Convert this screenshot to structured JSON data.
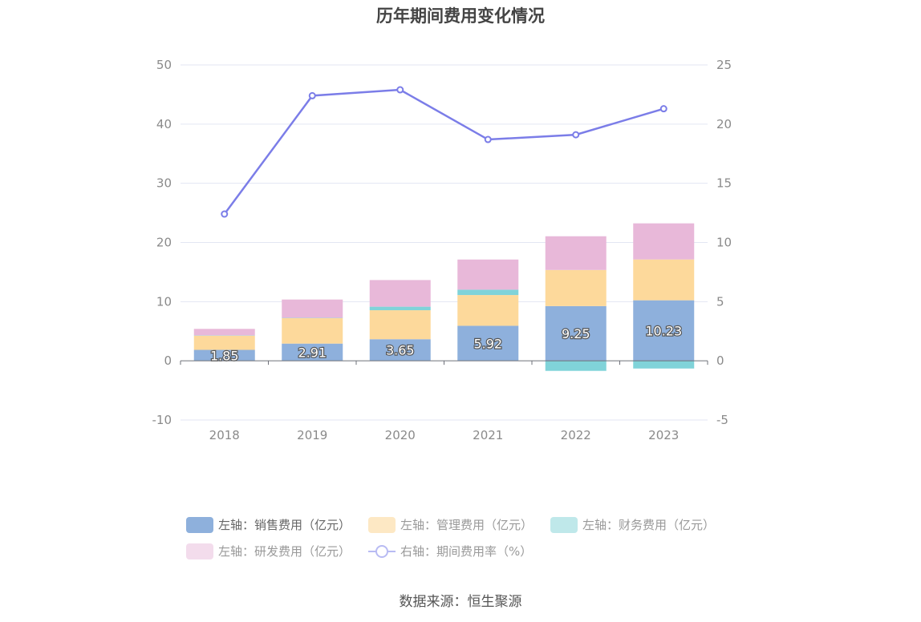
{
  "chart_data": {
    "type": "bar",
    "title": "历年期间费用变化情况",
    "categories": [
      "2018",
      "2019",
      "2020",
      "2021",
      "2022",
      "2023"
    ],
    "left_axis": {
      "ylim": [
        -10,
        50
      ],
      "ticks": [
        "50",
        "40",
        "30",
        "20",
        "10",
        "0",
        "-10"
      ],
      "tick_values": [
        50,
        40,
        30,
        20,
        10,
        0,
        -10
      ]
    },
    "right_axis": {
      "ylim": [
        -5,
        25
      ],
      "ticks": [
        "25",
        "20",
        "15",
        "10",
        "5",
        "0",
        "-5"
      ],
      "tick_values": [
        25,
        20,
        15,
        10,
        5,
        0,
        -5
      ]
    },
    "series": [
      {
        "name": "左轴：销售费用（亿元）",
        "axis": "left",
        "kind": "bar",
        "color": "#8eb0dc",
        "values": [
          1.85,
          2.91,
          3.65,
          5.92,
          9.25,
          10.23
        ],
        "labels": [
          "1.85",
          "2.91",
          "3.65",
          "5.92",
          "9.25",
          "10.23"
        ]
      },
      {
        "name": "左轴：管理费用（亿元）",
        "axis": "left",
        "kind": "bar",
        "color": "#fdd99b",
        "values": [
          2.4,
          4.3,
          4.9,
          5.2,
          6.1,
          6.9
        ]
      },
      {
        "name": "左轴：财务费用（亿元）",
        "axis": "left",
        "kind": "bar",
        "color": "#80d3d9",
        "values": [
          0.05,
          0.05,
          0.6,
          0.9,
          -1.7,
          -1.3
        ]
      },
      {
        "name": "左轴：研发费用（亿元）",
        "axis": "left",
        "kind": "bar",
        "color": "#e8b8d9",
        "values": [
          1.1,
          3.1,
          4.5,
          5.1,
          5.7,
          6.1
        ]
      },
      {
        "name": "右轴：期间费用率（%）",
        "axis": "right",
        "kind": "line",
        "color": "#7b7de8",
        "values": [
          12.4,
          22.4,
          22.9,
          18.7,
          19.1,
          21.3
        ]
      }
    ]
  },
  "legend": {
    "sales": "左轴：销售费用（亿元）",
    "admin": "左轴：管理费用（亿元）",
    "finance": "左轴：财务费用（亿元）",
    "rnd": "左轴：研发费用（亿元）",
    "rate": "右轴：期间费用率（%）"
  },
  "source": "数据来源：恒生聚源"
}
